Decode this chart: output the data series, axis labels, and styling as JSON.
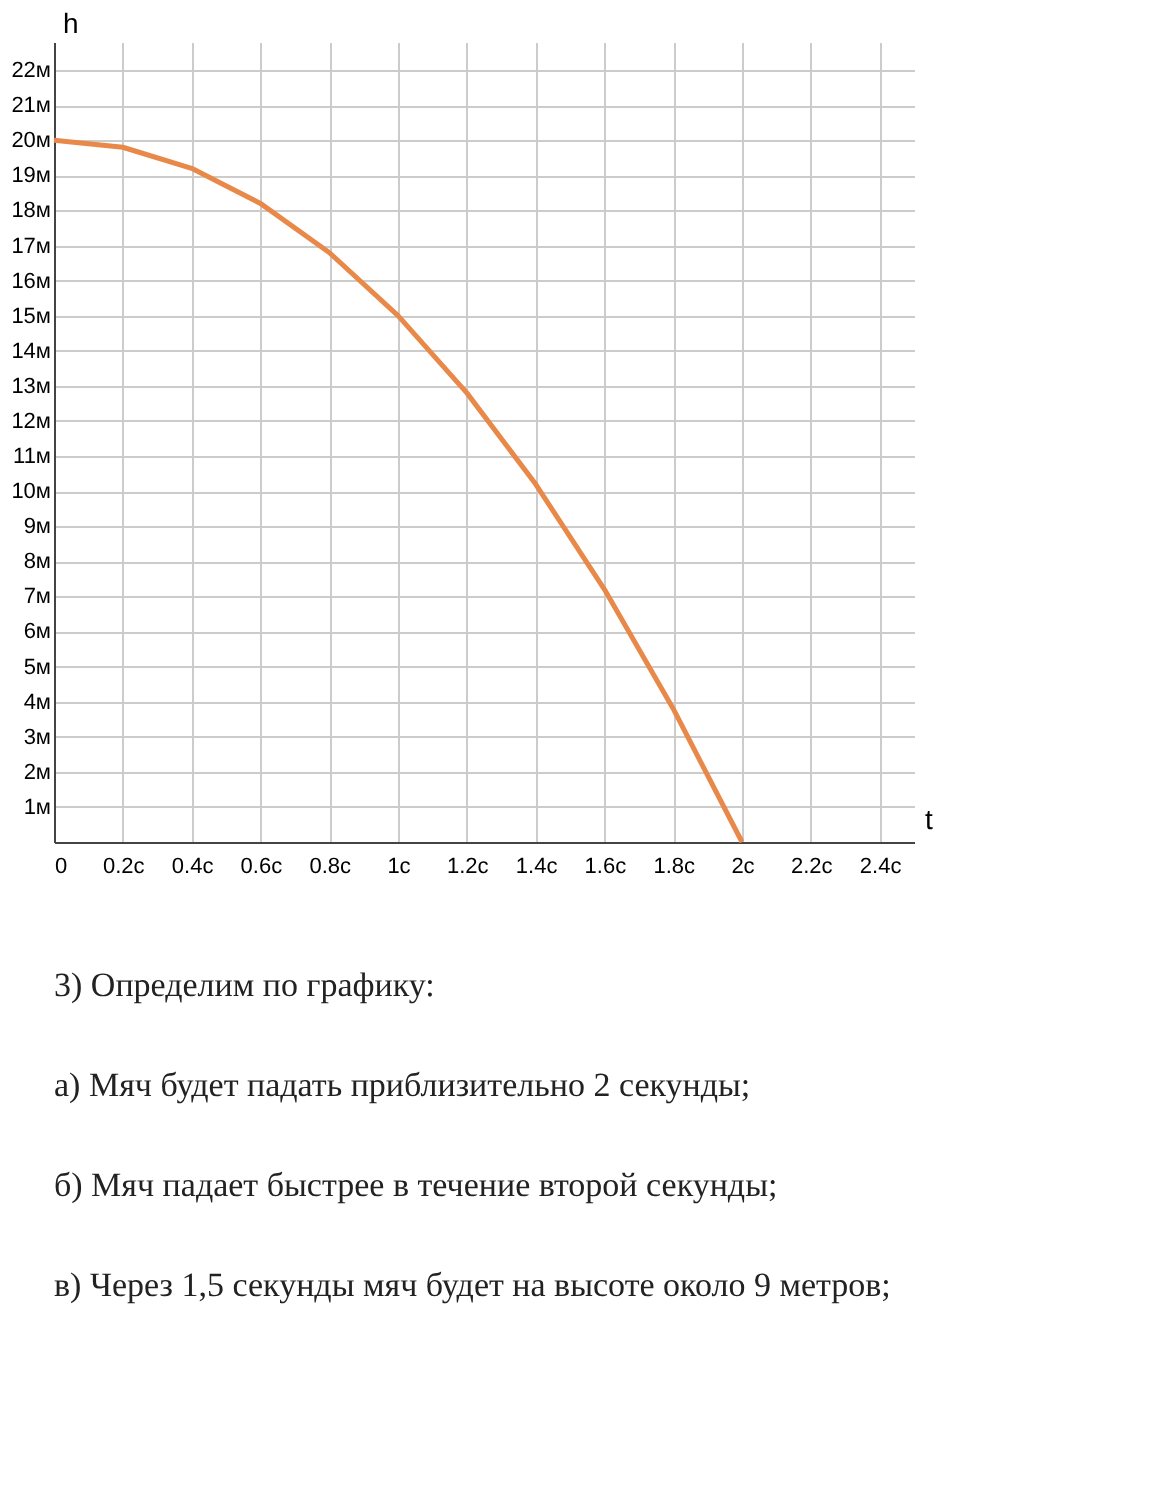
{
  "chart_data": {
    "type": "line",
    "xlabel": "t",
    "ylabel": "h",
    "x": [
      0,
      0.2,
      0.4,
      0.6,
      0.8,
      1.0,
      1.2,
      1.4,
      1.6,
      1.8,
      2.0
    ],
    "series": [
      {
        "color": "#e8894a",
        "values": [
          20,
          19.8,
          19.2,
          18.2,
          16.8,
          15,
          12.8,
          10.2,
          7.2,
          3.8,
          0
        ]
      }
    ],
    "xlim": [
      0,
      2.5
    ],
    "ylim": [
      0,
      22.8
    ],
    "xticks": [
      {
        "value": 0,
        "label": "0"
      },
      {
        "value": 0.2,
        "label": "0.2с"
      },
      {
        "value": 0.4,
        "label": "0.4с"
      },
      {
        "value": 0.6,
        "label": "0.6с"
      },
      {
        "value": 0.8,
        "label": "0.8с"
      },
      {
        "value": 1,
        "label": "1с"
      },
      {
        "value": 1.2,
        "label": "1.2с"
      },
      {
        "value": 1.4,
        "label": "1.4с"
      },
      {
        "value": 1.6,
        "label": "1.6с"
      },
      {
        "value": 1.8,
        "label": "1.8с"
      },
      {
        "value": 2,
        "label": "2с"
      },
      {
        "value": 2.2,
        "label": "2.2с"
      },
      {
        "value": 2.4,
        "label": "2.4с"
      }
    ],
    "yticks": [
      {
        "value": 1,
        "label": "1м"
      },
      {
        "value": 2,
        "label": "2м"
      },
      {
        "value": 3,
        "label": "3м"
      },
      {
        "value": 4,
        "label": "4м"
      },
      {
        "value": 5,
        "label": "5м"
      },
      {
        "value": 6,
        "label": "6м"
      },
      {
        "value": 7,
        "label": "7м"
      },
      {
        "value": 8,
        "label": "8м"
      },
      {
        "value": 9,
        "label": "9м"
      },
      {
        "value": 10,
        "label": "10м"
      },
      {
        "value": 11,
        "label": "11м"
      },
      {
        "value": 12,
        "label": "12м"
      },
      {
        "value": 13,
        "label": "13м"
      },
      {
        "value": 14,
        "label": "14м"
      },
      {
        "value": 15,
        "label": "15м"
      },
      {
        "value": 16,
        "label": "16м"
      },
      {
        "value": 17,
        "label": "17м"
      },
      {
        "value": 18,
        "label": "18м"
      },
      {
        "value": 19,
        "label": "19м"
      },
      {
        "value": 20,
        "label": "20м"
      },
      {
        "value": 21,
        "label": "21м"
      },
      {
        "value": 22,
        "label": "22м"
      }
    ],
    "grid": true,
    "marker": "none",
    "line_style": "solid",
    "annotations": [
      "3) Определим по графику:",
      "а) Мяч будет падать приблизительно 2 секунды;",
      "б) Мяч падает быстрее в течение второй секунды;",
      "в) Через 1,5 секунды мяч будет на высоте около 9 метров;"
    ]
  }
}
